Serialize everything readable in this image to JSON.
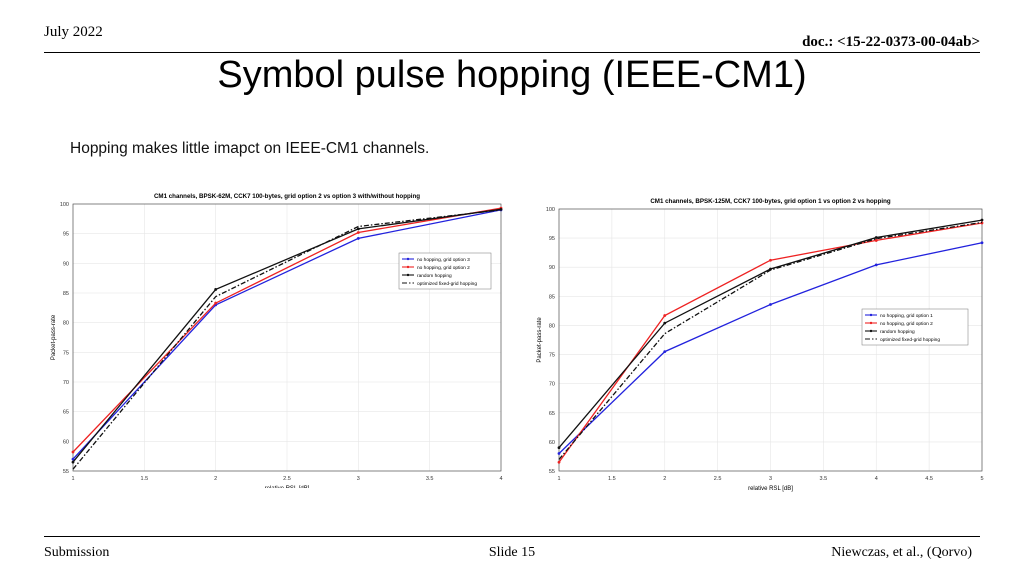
{
  "header": {
    "date": "July 2022",
    "doc": "doc.: <15-22-0373-00-04ab>"
  },
  "slide": {
    "title": "Symbol pulse hopping (IEEE-CM1)",
    "subtitle": "Hopping makes little imapct on IEEE-CM1 channels."
  },
  "footer": {
    "left": "Submission",
    "center": "Slide 15",
    "right": "Niewczas, et al., (Qorvo)"
  },
  "chart_data": [
    {
      "type": "line",
      "title": "CM1 channels, BPSK-62M, CCK7 100-bytes, grid option 2 vs option 3 with/without hopping",
      "xlabel": "relative RSL [dB]",
      "ylabel": "Packet-pass-rate",
      "xlim": [
        1,
        4
      ],
      "ylim": [
        55,
        100
      ],
      "xticks": [
        "1",
        "1.5",
        "2",
        "2.5",
        "3",
        "3.5",
        "4"
      ],
      "yticks": [
        "55",
        "60",
        "65",
        "70",
        "75",
        "80",
        "85",
        "90",
        "95",
        "100"
      ],
      "grid": true,
      "legend_position": "right",
      "x": [
        1,
        2,
        3,
        4
      ],
      "series": [
        {
          "name": "no hopping, grid option 3",
          "color": "#2222dd",
          "dash": "",
          "values": [
            57,
            83,
            94.2,
            99
          ]
        },
        {
          "name": "no hopping, grid option 2",
          "color": "#ee2222",
          "dash": "",
          "values": [
            58.2,
            83.3,
            95.2,
            99.3
          ]
        },
        {
          "name": "random hopping",
          "color": "#111111",
          "dash": "",
          "values": [
            56.5,
            85.6,
            95.8,
            99.1
          ]
        },
        {
          "name": "optimized fixed-grid hopping",
          "color": "#111111",
          "dash": "5,2,1.5,2",
          "values": [
            55.3,
            84.4,
            96.2,
            99.0
          ]
        }
      ]
    },
    {
      "type": "line",
      "title": "CM1 channels, BPSK-125M, CCK7 100-bytes, grid option 1 vs option 2 vs hopping",
      "xlabel": "relative RSL [dB]",
      "ylabel": "Packet-pass-rate",
      "xlim": [
        1,
        5
      ],
      "ylim": [
        55,
        100
      ],
      "xticks": [
        "1",
        "1.5",
        "2",
        "2.5",
        "3",
        "3.5",
        "4",
        "4.5",
        "5"
      ],
      "yticks": [
        "55",
        "60",
        "65",
        "70",
        "75",
        "80",
        "85",
        "90",
        "95",
        "100"
      ],
      "grid": true,
      "legend_position": "right",
      "x": [
        1,
        2,
        3,
        4,
        5
      ],
      "series": [
        {
          "name": "no hopping, grid option 1",
          "color": "#2222dd",
          "dash": "",
          "values": [
            58,
            75.5,
            83.6,
            90.4,
            94.2
          ]
        },
        {
          "name": "no hopping, grid option 2",
          "color": "#ee2222",
          "dash": "",
          "values": [
            56.5,
            81.7,
            91.2,
            94.6,
            97.6
          ]
        },
        {
          "name": "random hopping",
          "color": "#111111",
          "dash": "",
          "values": [
            59,
            80.4,
            89.7,
            95.1,
            98.1
          ]
        },
        {
          "name": "optimized fixed-grid hopping",
          "color": "#111111",
          "dash": "5,2,1.5,2",
          "values": [
            57,
            78.6,
            89.5,
            94.9,
            97.7
          ]
        }
      ]
    }
  ]
}
